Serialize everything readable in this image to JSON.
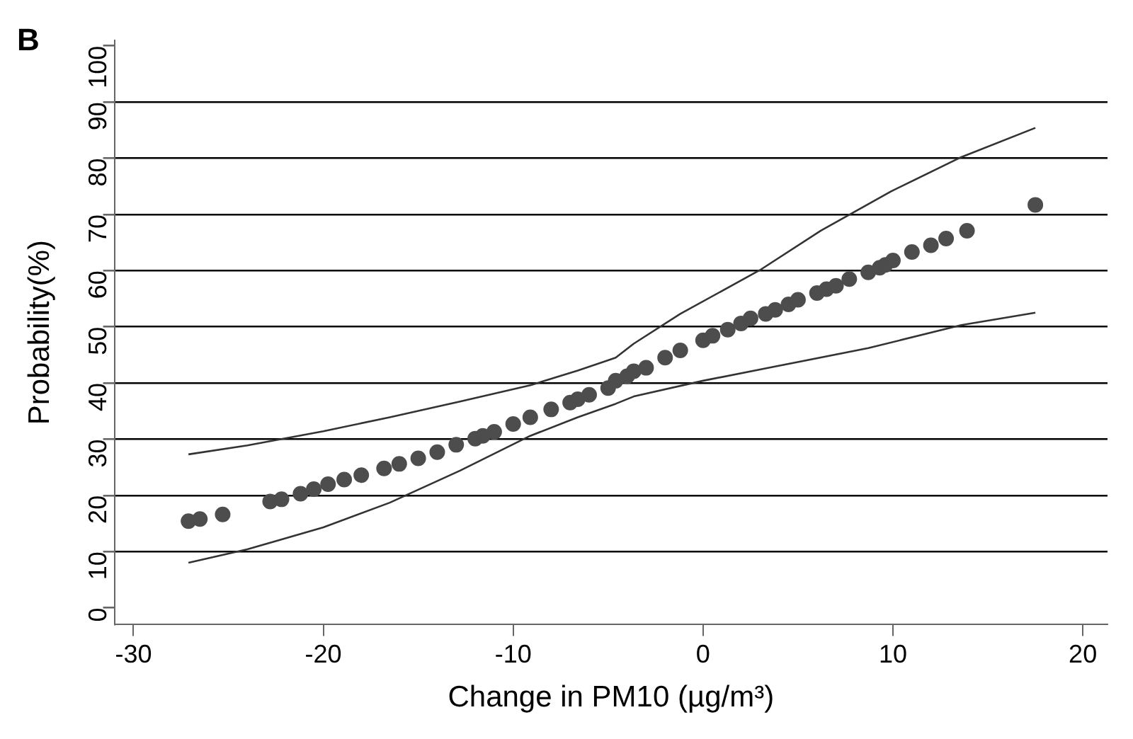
{
  "chart_data": {
    "type": "scatter",
    "title": "B",
    "xlabel": "Change in PM10 (µg/m³)",
    "ylabel": "Probability(%)",
    "xlim": [
      -31,
      21.3
    ],
    "xticks": [
      -30,
      -20,
      -10,
      0,
      10,
      20
    ],
    "ylim": [
      -3,
      101
    ],
    "yticks": [
      0,
      10,
      20,
      30,
      40,
      50,
      60,
      70,
      80,
      90,
      100
    ],
    "grid": "y",
    "legend": false,
    "marker": "circle",
    "series": [
      {
        "color": "#4d4d4d",
        "x": [
          -27.1,
          -26.5,
          -25.3,
          -22.8,
          -22.2,
          -21.2,
          -20.5,
          -19.75,
          -18.9,
          -18.0,
          -16.8,
          -16,
          -15,
          -14.0,
          -13,
          -12,
          -11.6,
          -11,
          -10,
          -9.1,
          -8,
          -7,
          -6.6,
          -6,
          -5,
          -4.6,
          -4,
          -3.65,
          -3,
          -2,
          -1.2,
          0,
          0.5,
          1.3,
          2,
          2.5,
          3.3,
          3.8,
          4.5,
          5.0,
          6.0,
          6.5,
          7,
          7.7,
          8.7,
          9.3,
          9.6,
          10.0,
          11.0,
          12.0,
          12.8,
          13.9,
          17.5
        ],
        "values": [
          15.4,
          15.8,
          16.6,
          18.9,
          19.3,
          20.3,
          21.1,
          22,
          22.8,
          23.6,
          24.8,
          25.6,
          26.6,
          27.7,
          29,
          30.1,
          30.6,
          31.3,
          32.7,
          33.9,
          35.3,
          36.5,
          37.1,
          37.9,
          39.1,
          40.4,
          41.2,
          42.1,
          42.7,
          44.5,
          45.8,
          47.6,
          48.4,
          49.5,
          50.6,
          51.5,
          52.3,
          53,
          54,
          54.8,
          56,
          56.7,
          57.3,
          58.5,
          59.7,
          60.5,
          61,
          61.8,
          63.3,
          64.5,
          65.7,
          67.1,
          71.7
        ]
      },
      {
        "type": "line",
        "color": "#333333",
        "marker": "none",
        "x": [
          -27.1,
          -24,
          -20,
          -16.5,
          -12.8,
          -9.1,
          -6.6,
          -4.6,
          -3.65,
          -1.2,
          3,
          6.2,
          9.9,
          13.6,
          17.5
        ],
        "values": [
          27.3,
          28.9,
          31.4,
          33.9,
          36.7,
          39.6,
          42.2,
          44.5,
          47,
          52.3,
          60.1,
          67.1,
          74.1,
          80.2,
          85.4
        ]
      },
      {
        "type": "line",
        "color": "#333333",
        "marker": "none",
        "x": [
          -27.1,
          -24,
          -20,
          -16.5,
          -12.8,
          -9.1,
          -6.6,
          -4.6,
          -3.65,
          0,
          3.75,
          8.7,
          13.6,
          17.5
        ],
        "values": [
          8,
          10.4,
          14.3,
          18.7,
          24.4,
          30.6,
          33.9,
          36.3,
          37.6,
          40.4,
          42.9,
          46.2,
          50.3,
          52.5
        ]
      }
    ]
  }
}
